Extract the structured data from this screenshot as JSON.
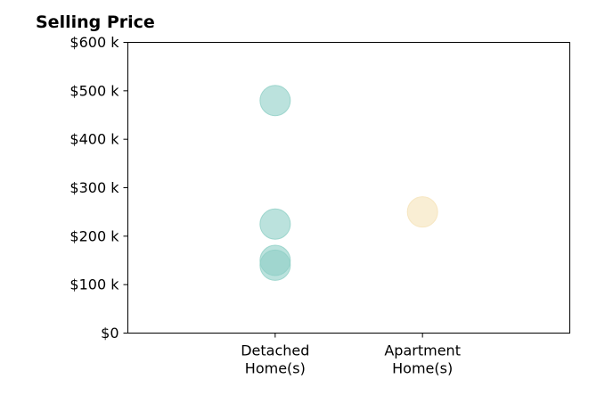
{
  "chart_data": {
    "type": "scatter",
    "title": "Selling Price",
    "xlabel": "",
    "ylabel": "",
    "categories": [
      "Detached\nHome(s)",
      "Apartment\nHome(s)"
    ],
    "y_ticks": [
      "$0",
      "$100 k",
      "$200 k",
      "$300 k",
      "$400 k",
      "$500 k",
      "$600 k"
    ],
    "ylim": [
      0,
      600000
    ],
    "grid": false,
    "legend": "none",
    "series": [
      {
        "category": "Detached\nHome(s)",
        "color": "#8ecfc6",
        "values": [
          480000,
          225000,
          150000,
          140000
        ]
      },
      {
        "category": "Apartment\nHome(s)",
        "color": "#f5e2b8",
        "values": [
          250000
        ]
      }
    ]
  }
}
